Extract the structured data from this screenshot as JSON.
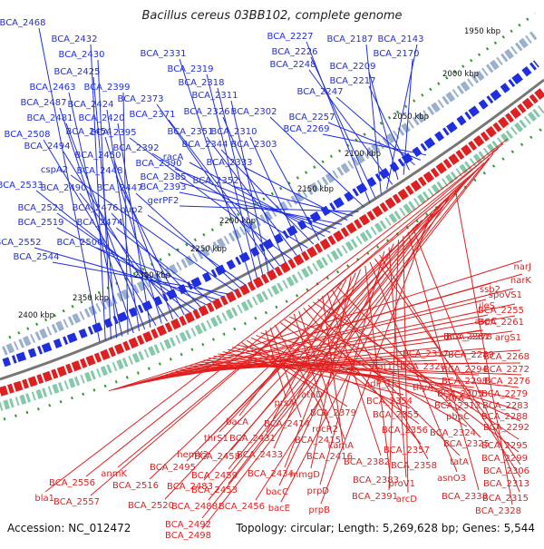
{
  "title": "Bacillus cereus 03BB102, complete genome",
  "footer": {
    "accession": "Accession: NC_012472",
    "summary": "Topology: circular; Length: 5,269,628 bp; Genes: 5,544"
  },
  "colors": {
    "forward": "#1f2fe0",
    "reverse": "#e02020",
    "backbone": "#777777",
    "tick_green": "#2e9b2e"
  },
  "kbp_labels": [
    "1950 kbp",
    "2000 kbp",
    "2050 kbp",
    "2100 kbp",
    "2150 kbp",
    "2200 kbp",
    "2250 kbp",
    "2300 kbp",
    "2350 kbp",
    "2400 kbp"
  ],
  "forward_genes": [
    "BCA_2468",
    "BCA_2432",
    "BCA_2430",
    "BCA_2425",
    "BCA_2463",
    "BCA_2399",
    "BCA_2487",
    "BCA_2424",
    "BCA_2481",
    "BCA_2420",
    "BCA_2508",
    "BCA_2454",
    "BCA_2494",
    "BCA_2450",
    "BCA_2490",
    "BCA_2448",
    "BCA_2533",
    "BCA_2523",
    "BCA_2476",
    "BCA_2519",
    "BCA_2474",
    "BCA_2552",
    "BCA_2500",
    "BCA_2544",
    "cspA2",
    "BCA_2447",
    "hup2",
    "BCA_2331",
    "BCA_2319",
    "BCA_2318",
    "BCA_2311",
    "BCA_2373",
    "BCA_2371",
    "BCA_2326",
    "BCA_2395",
    "BCA_2351",
    "BCA_2310",
    "BCA_2392",
    "BCA_2344",
    "BCA_2303",
    "racA",
    "BCA_2390",
    "BCA_2385",
    "BCA_2393",
    "BCA_2333",
    "BCA_2352",
    "gerPF2",
    "BCA_2302",
    "BCA_2227",
    "BCA_2226",
    "BCA_2187",
    "BCA_2143",
    "BCA_2248",
    "BCA_2209",
    "BCA_2170",
    "BCA_2217",
    "BCA_2247",
    "BCA_2257",
    "BCA_2269"
  ],
  "reverse_genes": [
    "narJ",
    "narK",
    "ssb2",
    "spoVS1",
    "ileS",
    "BCA_2255",
    "aspC",
    "BCA_2261",
    "BCA_2281",
    "BCA_2278",
    "argS1",
    "BCA_2317",
    "BCA_2289",
    "BCA_2268",
    "dat1",
    "BCA_2320",
    "BCA_2294",
    "BCA_2272",
    "BCA_2298",
    "BCA_2276",
    "adP_1",
    "thyA",
    "BCA_2305",
    "BCA_2279",
    "BCA_2354",
    "dfrA",
    "BCA_2312",
    "BCA_2283",
    "atoD",
    "BCA_2379",
    "BCA_2355",
    "pbpC",
    "BCA_2288",
    "prsA",
    "BCA_2414",
    "rocR2",
    "BCA_2356",
    "BCA_2324",
    "BCA_2292",
    "BCA_2415",
    "kamA",
    "BCA_2357",
    "tatA",
    "BCA_2295",
    "BCA_2299",
    "BCA_2416",
    "BCA_2382",
    "BCA_2358",
    "BCA_2325",
    "bacA",
    "BCA_2431",
    "mmgD",
    "BCA_2433",
    "BCA_2434",
    "BCA_2383",
    "asnO3",
    "BCA_2306",
    "BCA_2313",
    "prpD",
    "proV1",
    "bacC",
    "BCA_2391",
    "arcD",
    "BCA_2338",
    "BCA_2315",
    "thrS1",
    "hemY2",
    "BCA_2458",
    "prpB",
    "bacE",
    "BCA_2459",
    "BCA_2453",
    "BCA_2456",
    "BCA_2328",
    "BCA_2495",
    "BCA_2483",
    "BCA_2488",
    "anmK",
    "BCA_2516",
    "BCA_2520",
    "BCA_2492",
    "BCA_2498",
    "BCA_2556",
    "BCA_2557",
    "bla1"
  ]
}
